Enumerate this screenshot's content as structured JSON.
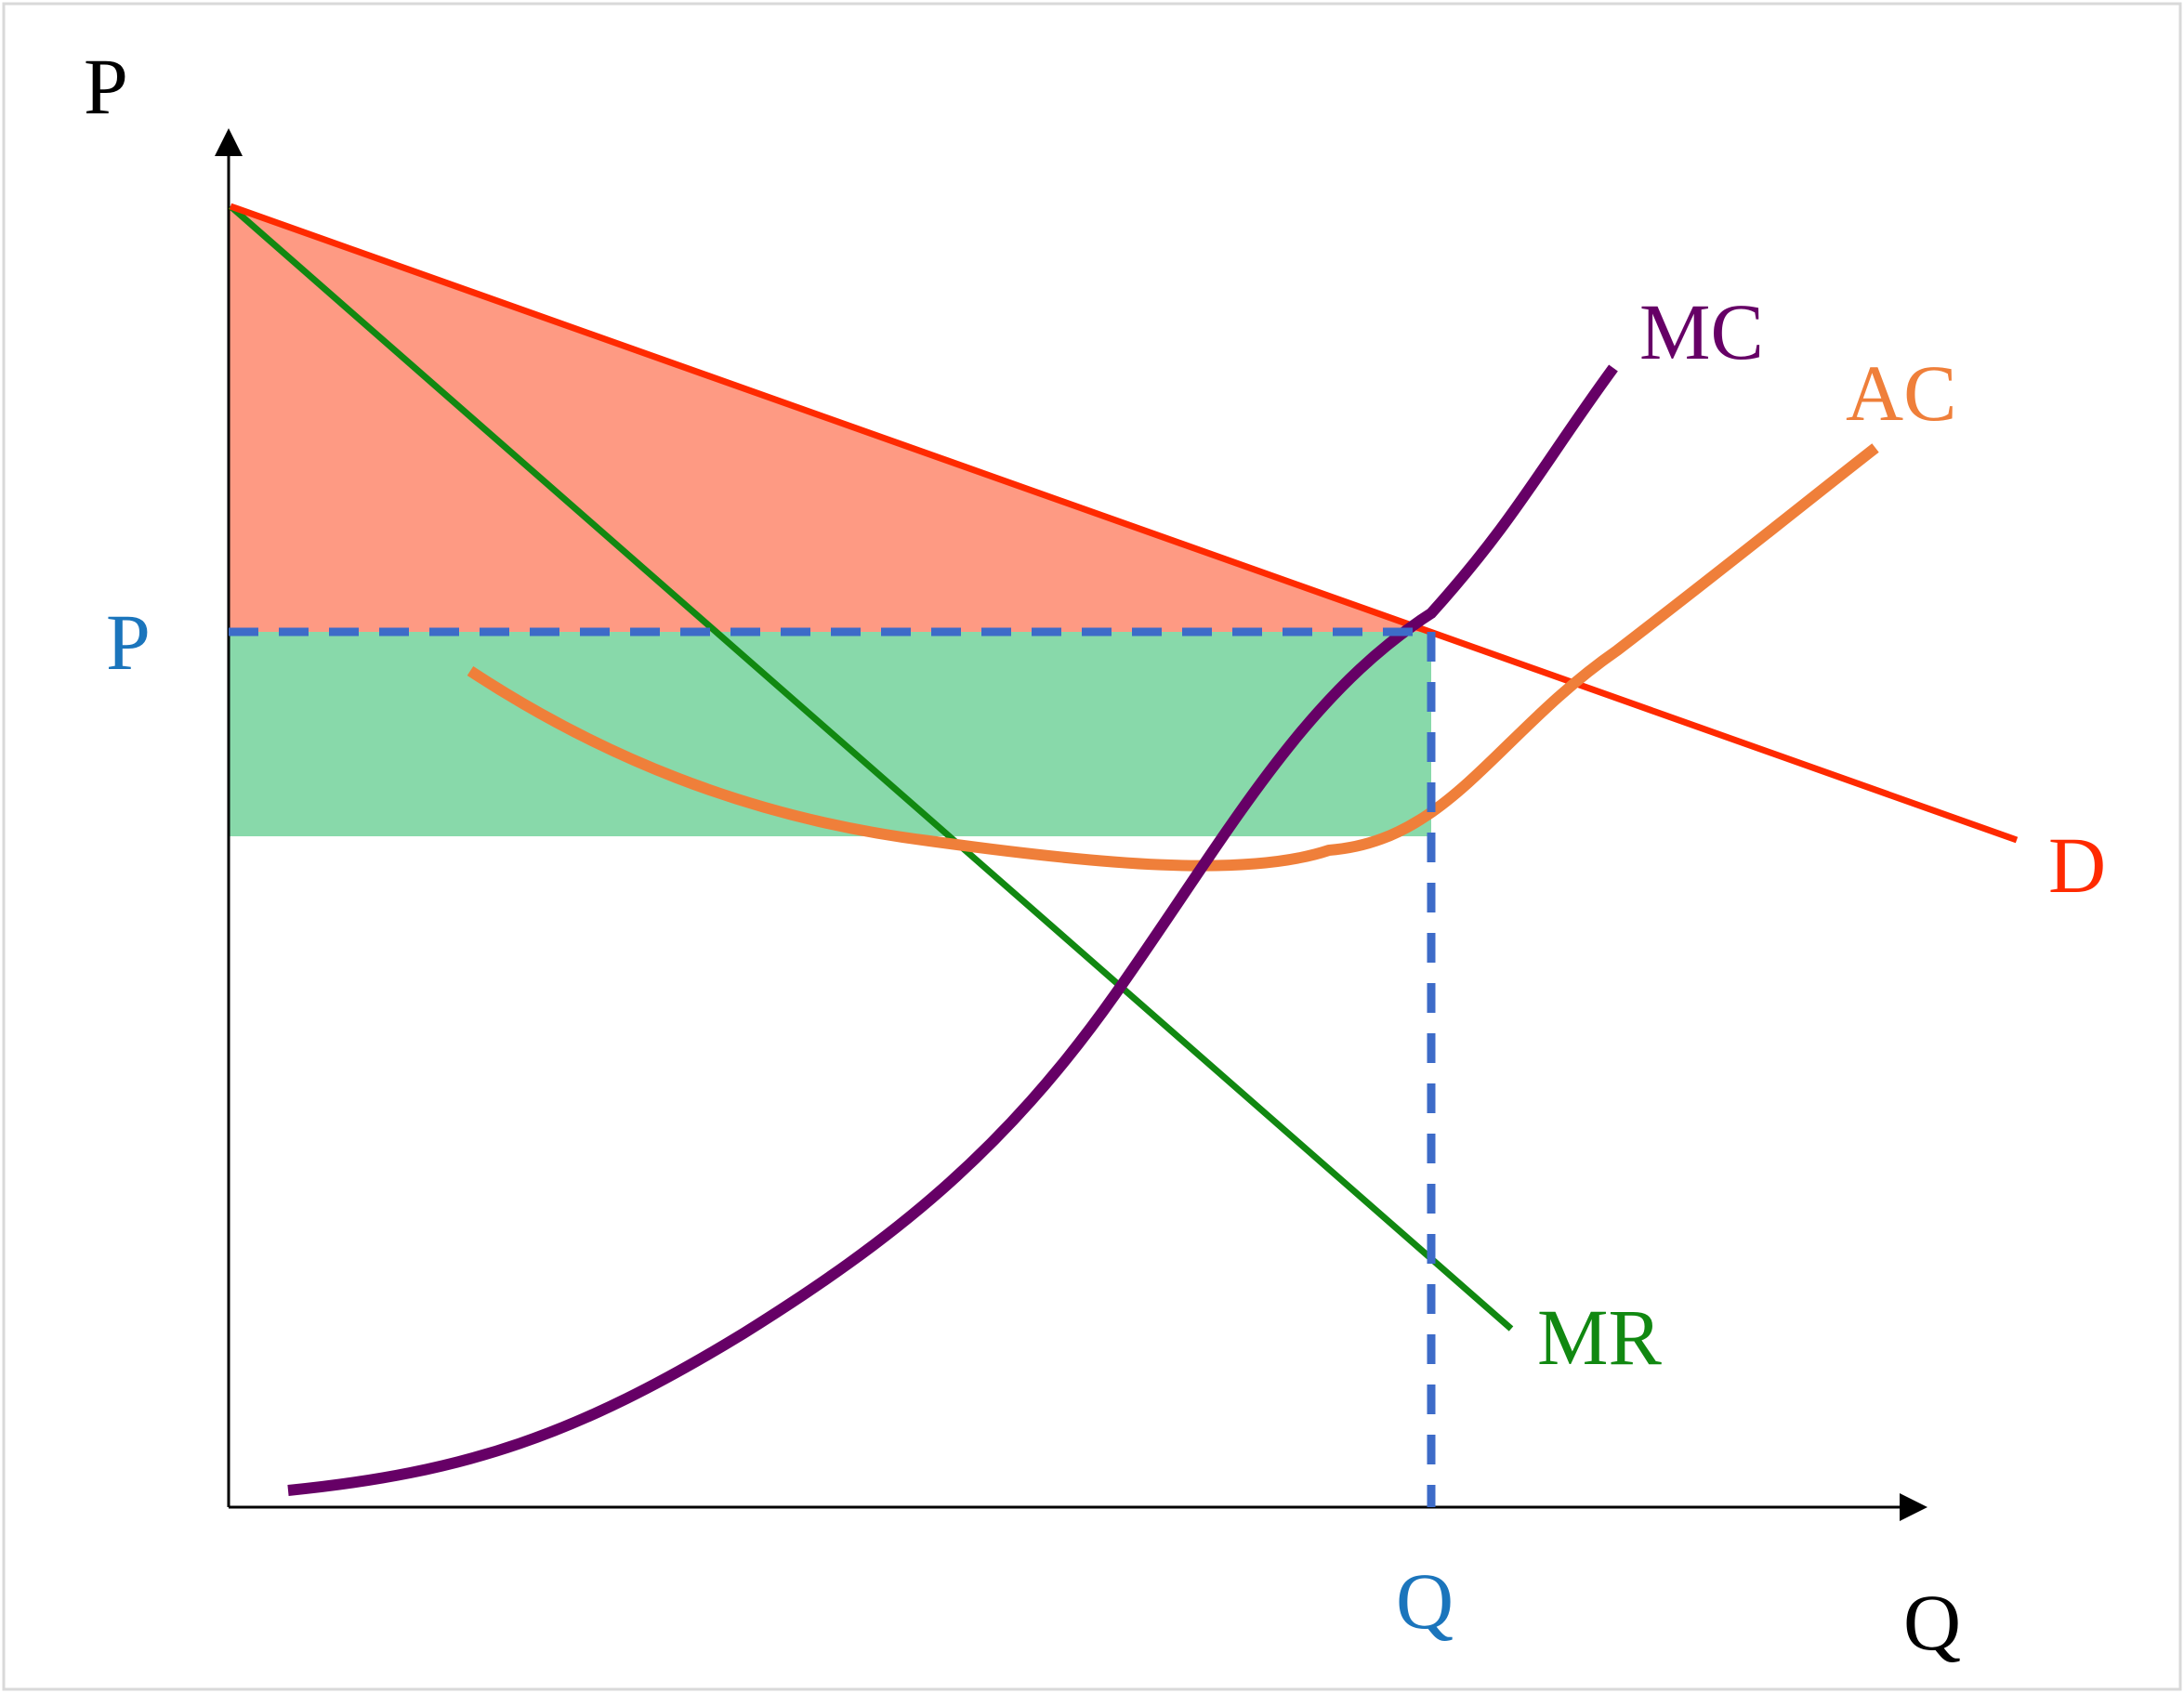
{
  "diagram": {
    "type": "monopoly-profit-and-consumer-surplus",
    "axes": {
      "y_label": "P",
      "x_label": "Q"
    },
    "equilibrium": {
      "price_label": "P",
      "quantity_label": "Q"
    },
    "curves": {
      "mc": "MC",
      "ac": "AC",
      "d": "D",
      "mr": "MR"
    },
    "colors": {
      "demand": "#ff2a00",
      "marginal_cost": "#660066",
      "average_cost": "#ef7f3a",
      "marginal_revenue": "#118811",
      "consumer_surplus_fill": "#fe9a83",
      "profit_fill": "#88d9aa",
      "guide_dashes": "#3d6bc8",
      "equilibrium_labels": "#1b75bc",
      "axes": "#000000"
    }
  }
}
